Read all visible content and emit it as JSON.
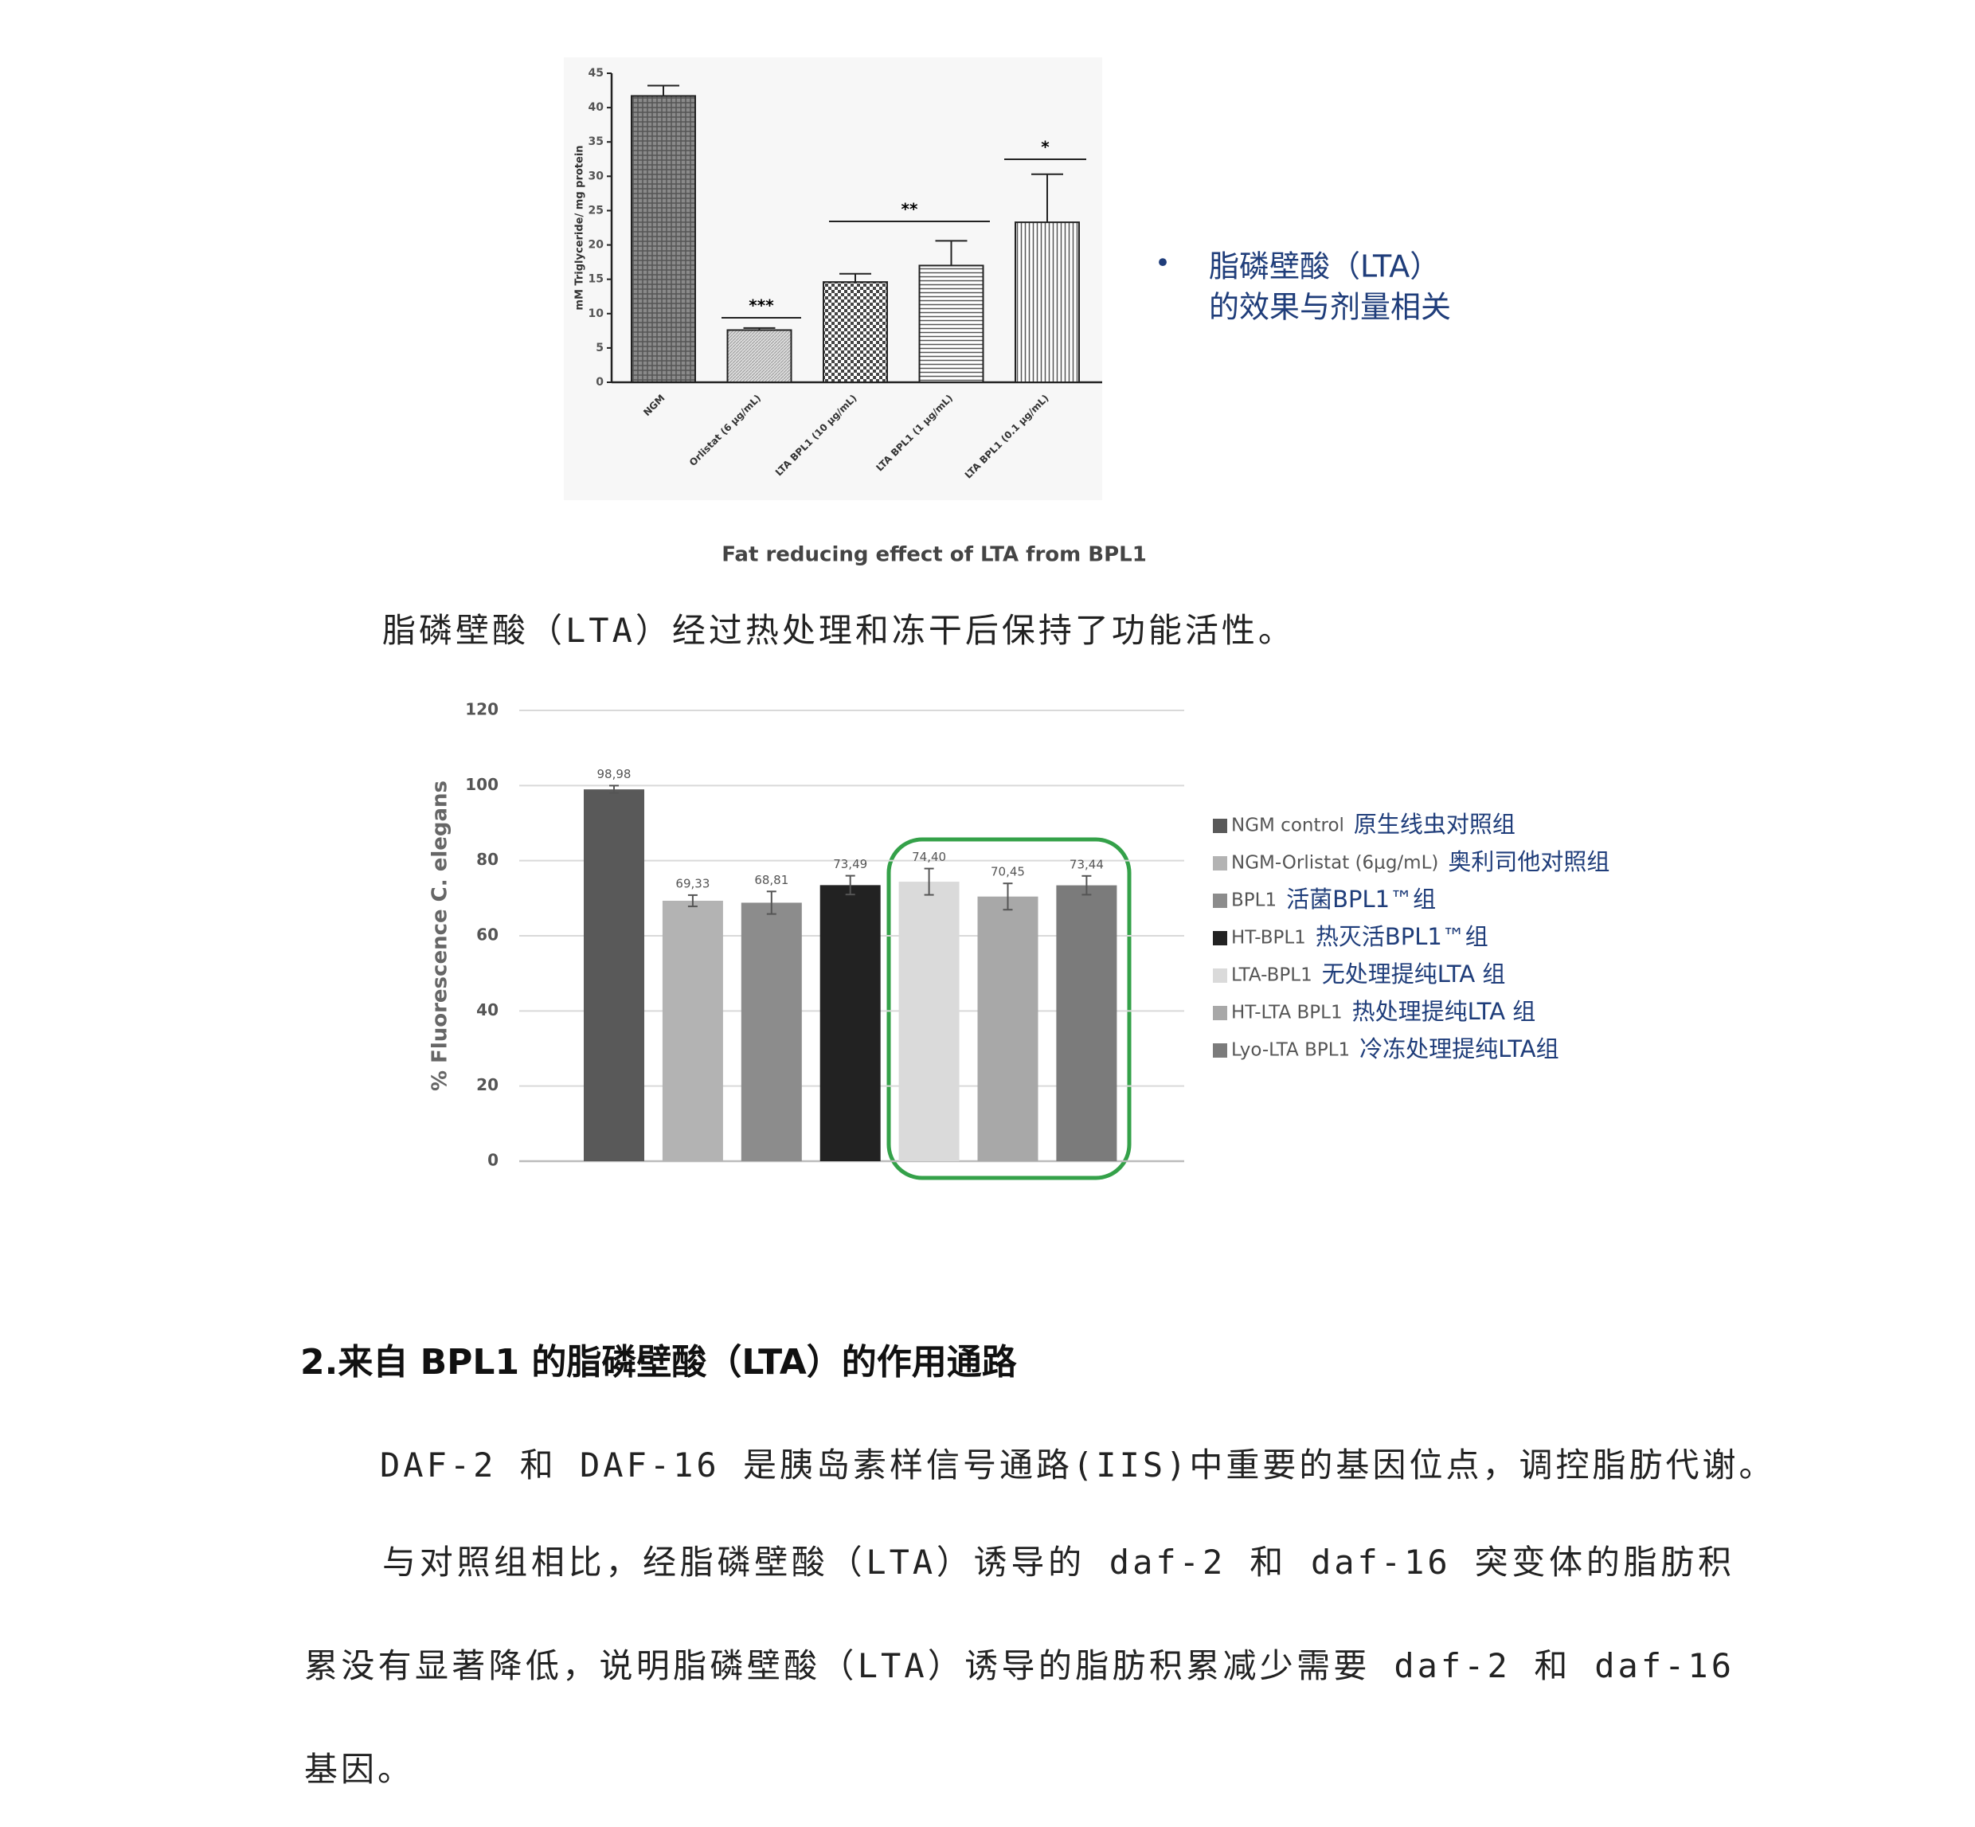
{
  "chart_data": [
    {
      "type": "bar",
      "ylabel": "mM Triglyceride/ mg protein",
      "caption": "Fat reducing effect of LTA from BPL1",
      "categories": [
        "NGM",
        "Orlistat (6 μg/mL)",
        "LTA BPL1 (10 μg/mL)",
        "LTA BPL1 (1 μg/mL)",
        "LTA BPL1 (0.1 μg/mL)"
      ],
      "values": [
        41.7,
        7.6,
        14.6,
        17.0,
        23.3
      ],
      "errors": [
        1.5,
        0.3,
        1.2,
        3.6,
        7.0
      ],
      "ylim": [
        0,
        45
      ],
      "yticks": [
        0,
        5,
        10,
        15,
        20,
        25,
        30,
        35,
        40,
        45
      ],
      "annotations": [
        "***",
        "**",
        "*"
      ],
      "note": [
        "脂磷壁酸（LTA）",
        "的效果与剂量相关"
      ]
    },
    {
      "type": "bar",
      "ylabel": "% Fluorescence C. elegans",
      "categories": [
        "NGM control",
        "NGM-Orlistat (6μg/mL)",
        "BPL1",
        "HT-BPL1",
        "LTA-BPL1",
        "HT-LTA BPL1",
        "Lyo-LTA BPL1"
      ],
      "notes": [
        "原生线虫对照组",
        "奥利司他对照组",
        "活菌BPL1™组",
        "热灭活BPL1™组",
        "无处理提纯LTA 组",
        "热处理提纯LTA 组",
        "冷冻处理提纯LTA组"
      ],
      "colors": [
        "#595959",
        "#b3b3b3",
        "#8c8c8c",
        "#222222",
        "#dadada",
        "#a8a8a8",
        "#7b7b7b"
      ],
      "values": [
        98.98,
        69.33,
        68.81,
        73.49,
        74.4,
        70.45,
        73.44
      ],
      "value_labels": [
        "98,98",
        "69,33",
        "68,81",
        "73,49",
        "74,40",
        "70,45",
        "73,44"
      ],
      "errors": [
        1.0,
        1.5,
        3.0,
        2.5,
        3.5,
        3.5,
        2.5
      ],
      "ylim": [
        0,
        120
      ],
      "yticks": [
        0,
        20,
        40,
        60,
        80,
        100,
        120
      ],
      "grid": true
    }
  ],
  "document": {
    "paragraph1": "脂磷壁酸（LTA）经过热处理和冻干后保持了功能活性。",
    "heading": "2.来自 BPL1 的脂磷壁酸（LTA）的作用通路",
    "paragraph2": "DAF-2 和 DAF-16 是胰岛素样信号通路(IIS)中重要的基因位点，调控脂肪代谢。",
    "paragraph3": "与对照组相比，经脂磷壁酸（LTA）诱导的 daf-2 和 daf-16 突变体的脂肪积累没有显著降低，说明脂磷壁酸（LTA）诱导的脂肪积累减少需要 daf-2 和 daf-16 基因。"
  }
}
